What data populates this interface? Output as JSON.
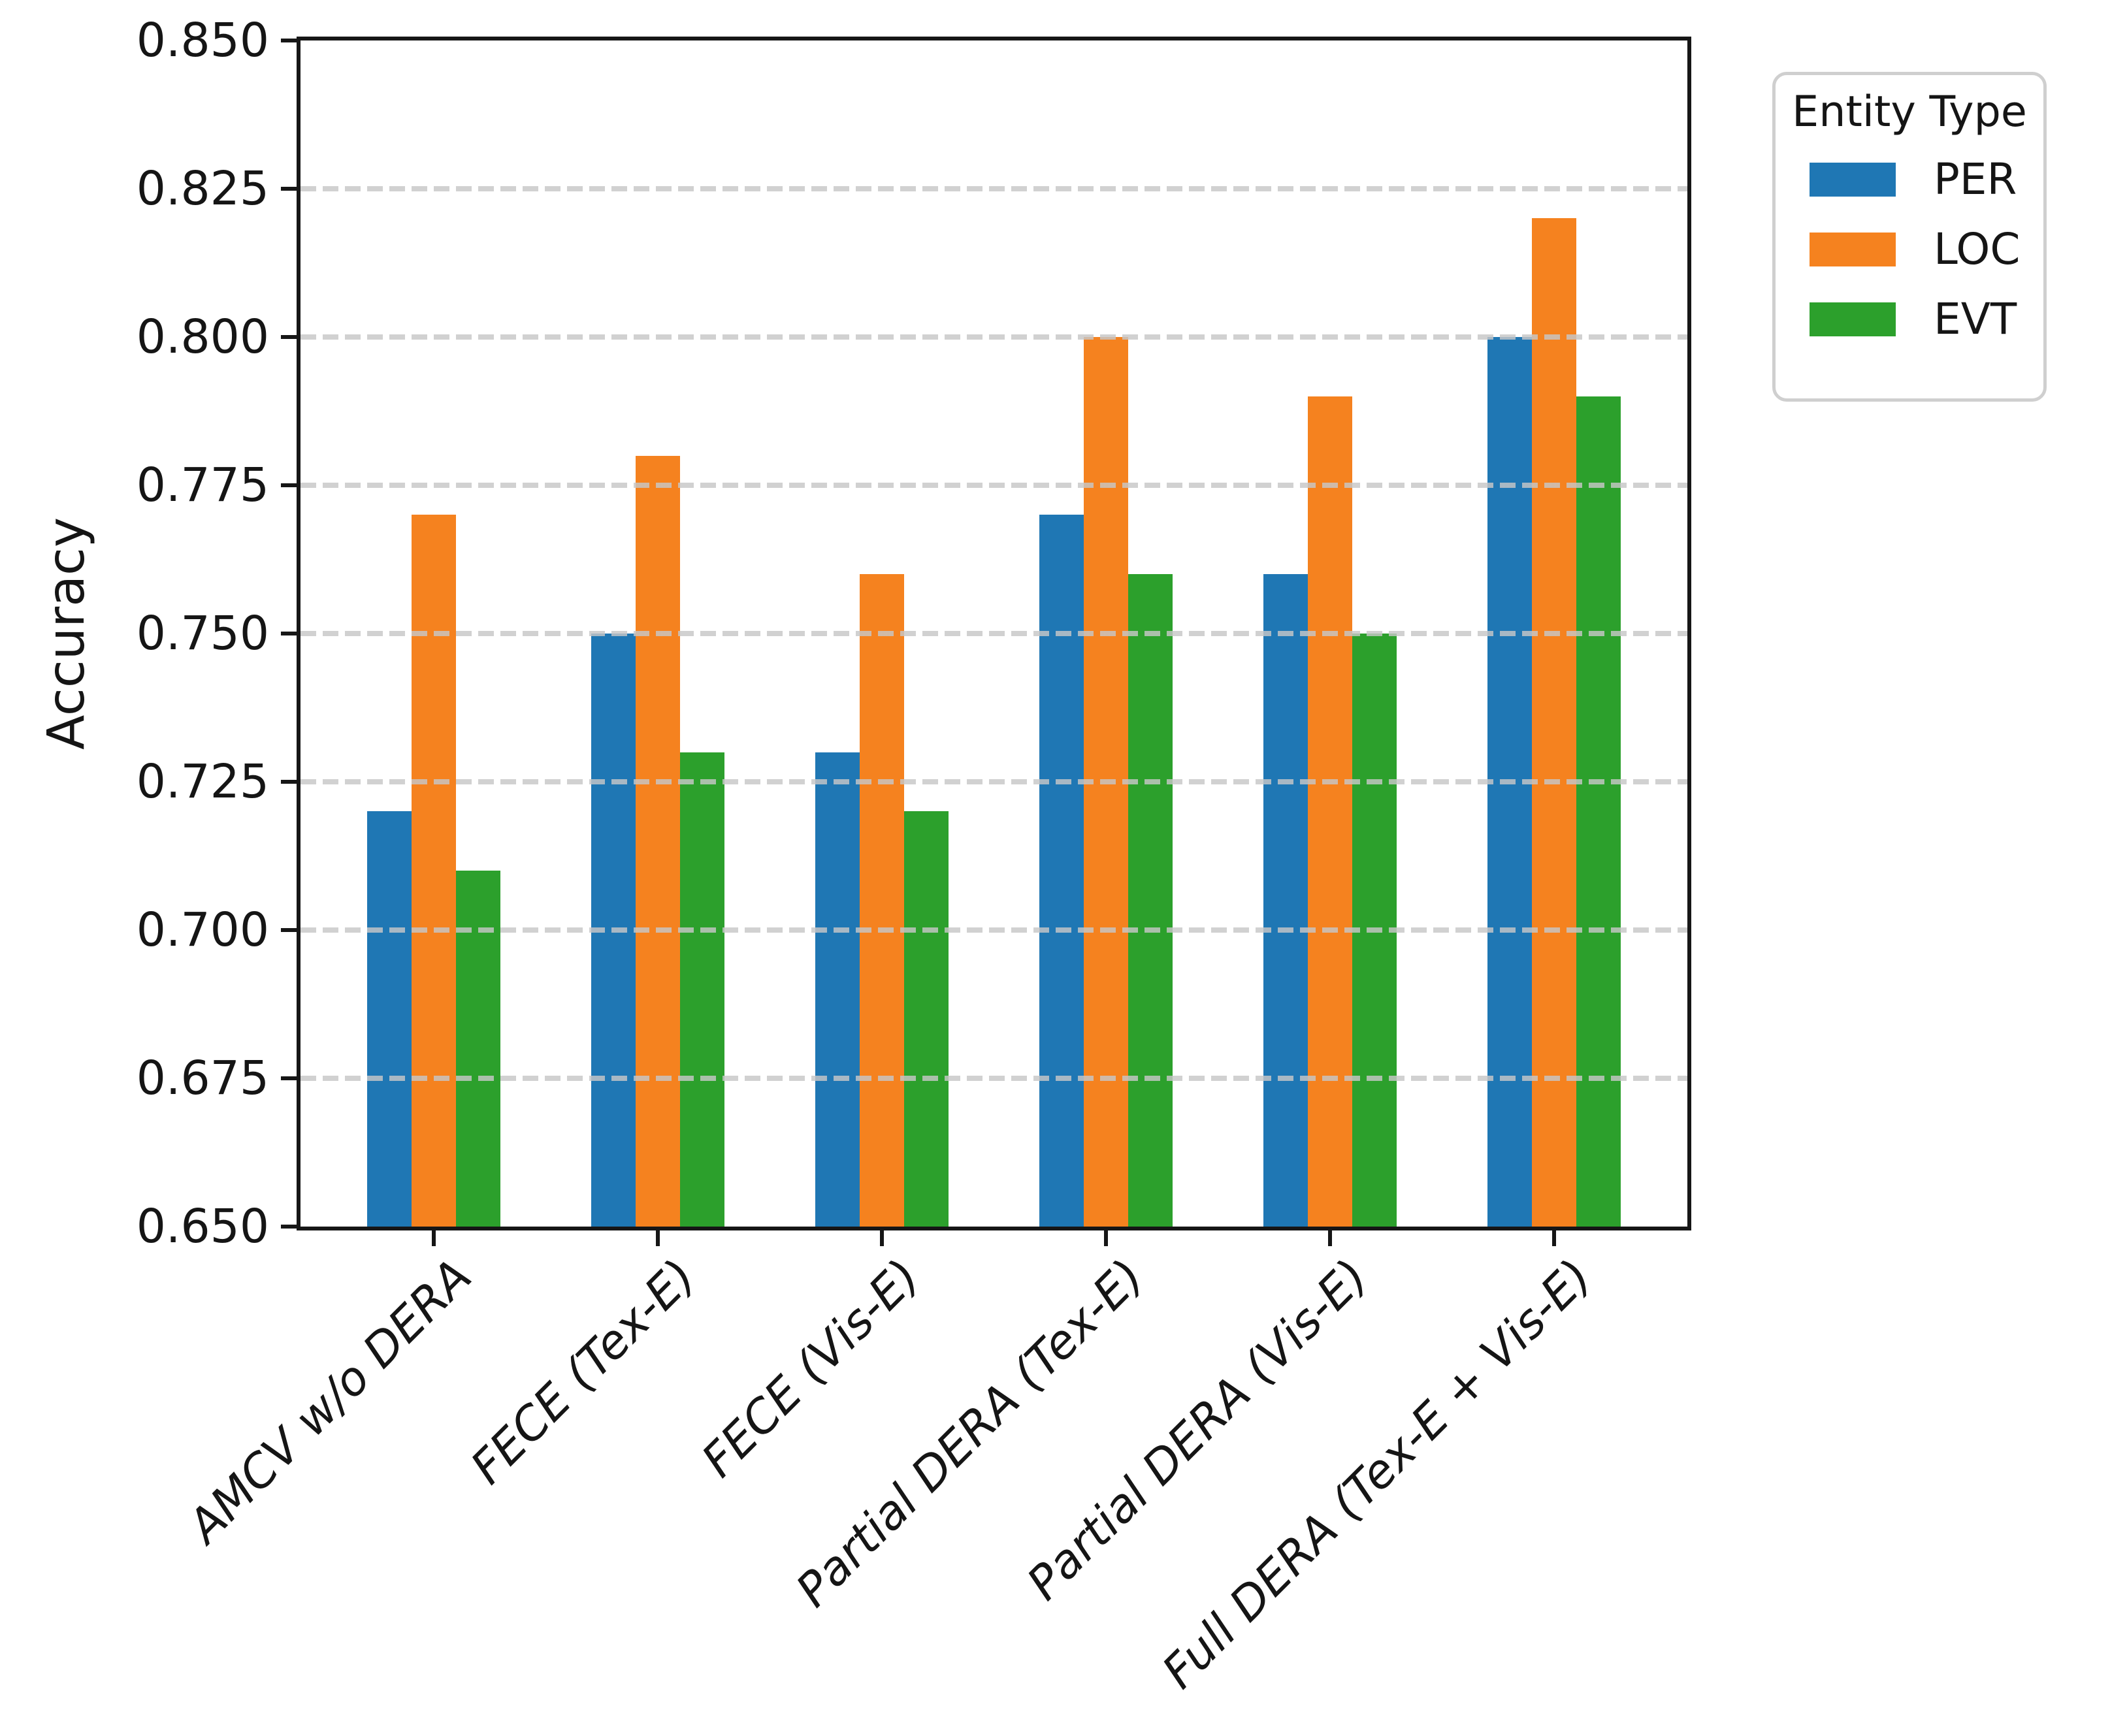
{
  "figure": {
    "ylabel": "Accuracy",
    "background": "#ffffff",
    "spine_color": "#161616"
  },
  "legend": {
    "title": "Entity Type",
    "position": "upper-right-outside",
    "entries": [
      "PER",
      "LOC",
      "EVT"
    ]
  },
  "chart_data": {
    "type": "bar",
    "categories": [
      "AMCV w/o DERA",
      "FECE (Tex-E)",
      "FECE (Vis-E)",
      "Partial DERA (Tex-E)",
      "Partial DERA (Vis-E)",
      "Full DERA (Tex-E + Vis-E)"
    ],
    "series": [
      {
        "name": "PER",
        "color": "#1f77b4",
        "values": [
          0.72,
          0.75,
          0.73,
          0.77,
          0.76,
          0.8
        ]
      },
      {
        "name": "LOC",
        "color": "#f5821f",
        "values": [
          0.77,
          0.78,
          0.76,
          0.8,
          0.79,
          0.82
        ]
      },
      {
        "name": "EVT",
        "color": "#2ca02c",
        "values": [
          0.71,
          0.73,
          0.72,
          0.76,
          0.75,
          0.79
        ]
      }
    ],
    "title": "",
    "xlabel": "",
    "ylabel": "Accuracy",
    "ylim": [
      0.65,
      0.85
    ],
    "ytick_labels": [
      "0.850",
      "0.825",
      "0.800",
      "0.775",
      "0.750",
      "0.725",
      "0.700",
      "0.675",
      "0.650"
    ],
    "grid": "horizontal-dashed",
    "grid_color": "#c7c7c7",
    "legend_title": "Entity Type",
    "legend_position": "outside upper right",
    "xtick_label_style": "italic, rotated 45deg, right-anchored"
  }
}
